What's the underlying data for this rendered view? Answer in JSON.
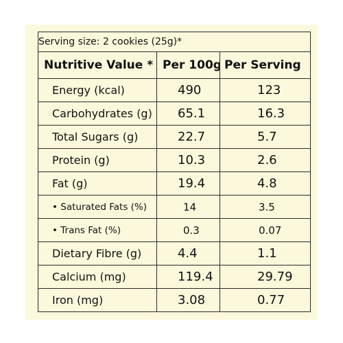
{
  "serving_size": "Serving size: 2 cookies (25g)*",
  "headers": {
    "nutrient": "Nutritive Value *",
    "per_100g": "Per 100g",
    "per_serving": "Per Serving"
  },
  "rows": [
    {
      "label": "Energy (kcal)",
      "per_100g": "490",
      "per_serving": "123"
    },
    {
      "label": "Carbohydrates (g)",
      "per_100g": "65.1",
      "per_serving": "16.3"
    },
    {
      "label": "Total Sugars (g)",
      "per_100g": "22.7",
      "per_serving": "5.7"
    },
    {
      "label": "Protein (g)",
      "per_100g": "10.3",
      "per_serving": "2.6"
    },
    {
      "label": "Fat (g)",
      "per_100g": "19.4",
      "per_serving": "4.8"
    },
    {
      "label": "• Saturated Fats (%)",
      "per_100g": "14",
      "per_serving": "3.5"
    },
    {
      "label": "• Trans Fat (%)",
      "per_100g": "0.3",
      "per_serving": "0.07"
    },
    {
      "label": "Dietary Fibre (g)",
      "per_100g": "4.4",
      "per_serving": "1.1"
    },
    {
      "label": "Calcium (mg)",
      "per_100g": "119.4",
      "per_serving": "29.79"
    },
    {
      "label": "Iron (mg)",
      "per_100g": "3.08",
      "per_serving": "0.77"
    }
  ],
  "colors": {
    "background": "#fcf8dc",
    "border": "#2a2a2a",
    "text": "#111111"
  }
}
